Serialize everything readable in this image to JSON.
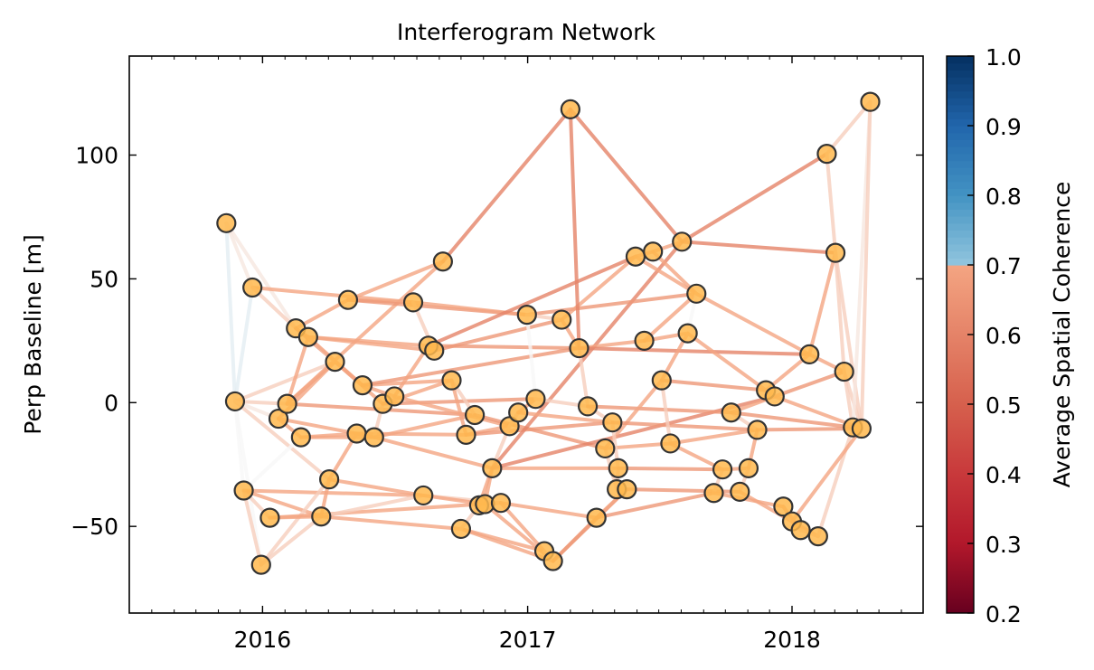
{
  "chart_data": {
    "type": "scatter",
    "title": "Interferogram Network",
    "xlabel": "",
    "ylabel": "Perp Baseline [m]",
    "xlim": [
      "2015-07-01",
      "2018-07-01"
    ],
    "ylim": [
      -85,
      140
    ],
    "x_ticks": [
      "2016-01-01",
      "2017-01-01",
      "2018-01-01"
    ],
    "x_tick_labels": [
      "2016",
      "2017",
      "2018"
    ],
    "y_ticks": [
      -50,
      0,
      50,
      100
    ],
    "y_tick_labels": [
      "−50",
      "0",
      "50",
      "100"
    ],
    "grid": false,
    "colorbar": {
      "label": "Average Spatial Coherence",
      "range": [
        0.2,
        1.0
      ],
      "ticks": [
        0.2,
        0.3,
        0.4,
        0.5,
        0.6,
        0.7,
        0.8,
        0.9,
        1.0
      ],
      "tick_labels": [
        "0.2",
        "0.3",
        "0.4",
        "0.5",
        "0.6",
        "0.7",
        "0.8",
        "0.9",
        "1.0"
      ],
      "colormap": "RdBu",
      "masked_above": 0.7
    },
    "node_color": "#ffb84d",
    "points": [
      {
        "date": "2015-11-12",
        "bperp": 72.5
      },
      {
        "date": "2015-11-24",
        "bperp": 0.5
      },
      {
        "date": "2015-12-06",
        "bperp": -35.5
      },
      {
        "date": "2015-12-18",
        "bperp": 46.5
      },
      {
        "date": "2015-12-30",
        "bperp": -65.5
      },
      {
        "date": "2016-01-11",
        "bperp": -46.5
      },
      {
        "date": "2016-01-23",
        "bperp": -6.5
      },
      {
        "date": "2016-02-04",
        "bperp": -0.5
      },
      {
        "date": "2016-02-16",
        "bperp": 30
      },
      {
        "date": "2016-02-23",
        "bperp": -14
      },
      {
        "date": "2016-03-04",
        "bperp": 26.5
      },
      {
        "date": "2016-03-22",
        "bperp": -46
      },
      {
        "date": "2016-04-02",
        "bperp": -31
      },
      {
        "date": "2016-04-10",
        "bperp": 16.5
      },
      {
        "date": "2016-04-28",
        "bperp": 41.5
      },
      {
        "date": "2016-05-10",
        "bperp": -12.5
      },
      {
        "date": "2016-05-18",
        "bperp": 7
      },
      {
        "date": "2016-06-03",
        "bperp": -14
      },
      {
        "date": "2016-06-15",
        "bperp": -0.5
      },
      {
        "date": "2016-07-01",
        "bperp": 2.5
      },
      {
        "date": "2016-07-27",
        "bperp": 40.5
      },
      {
        "date": "2016-08-10",
        "bperp": -37.5
      },
      {
        "date": "2016-08-17",
        "bperp": 23
      },
      {
        "date": "2016-08-25",
        "bperp": 21
      },
      {
        "date": "2016-09-06",
        "bperp": 57
      },
      {
        "date": "2016-09-18",
        "bperp": 9
      },
      {
        "date": "2016-10-01",
        "bperp": -51
      },
      {
        "date": "2016-10-08",
        "bperp": -13
      },
      {
        "date": "2016-10-20",
        "bperp": -5
      },
      {
        "date": "2016-10-26",
        "bperp": -41.5
      },
      {
        "date": "2016-11-03",
        "bperp": -41
      },
      {
        "date": "2016-11-13",
        "bperp": -26.5
      },
      {
        "date": "2016-11-25",
        "bperp": -40.5
      },
      {
        "date": "2016-12-07",
        "bperp": -9.5
      },
      {
        "date": "2016-12-19",
        "bperp": -4
      },
      {
        "date": "2016-12-31",
        "bperp": 35.5
      },
      {
        "date": "2017-01-12",
        "bperp": 1.5
      },
      {
        "date": "2017-01-24",
        "bperp": -60
      },
      {
        "date": "2017-02-05",
        "bperp": -64
      },
      {
        "date": "2017-02-17",
        "bperp": 33.5
      },
      {
        "date": "2017-03-01",
        "bperp": 118.5
      },
      {
        "date": "2017-03-13",
        "bperp": 22
      },
      {
        "date": "2017-03-25",
        "bperp": -1.5
      },
      {
        "date": "2017-04-06",
        "bperp": -46.5
      },
      {
        "date": "2017-04-18",
        "bperp": -18.5
      },
      {
        "date": "2017-04-28",
        "bperp": -8
      },
      {
        "date": "2017-05-04",
        "bperp": -35
      },
      {
        "date": "2017-05-06",
        "bperp": -26.5
      },
      {
        "date": "2017-05-18",
        "bperp": -35
      },
      {
        "date": "2017-05-30",
        "bperp": 59
      },
      {
        "date": "2017-06-11",
        "bperp": 25
      },
      {
        "date": "2017-06-23",
        "bperp": 61
      },
      {
        "date": "2017-07-05",
        "bperp": 9
      },
      {
        "date": "2017-07-17",
        "bperp": -16.5
      },
      {
        "date": "2017-08-02",
        "bperp": 65
      },
      {
        "date": "2017-08-10",
        "bperp": 28
      },
      {
        "date": "2017-08-22",
        "bperp": 44
      },
      {
        "date": "2017-09-15",
        "bperp": -36.5
      },
      {
        "date": "2017-09-27",
        "bperp": -27
      },
      {
        "date": "2017-10-09",
        "bperp": -4
      },
      {
        "date": "2017-10-21",
        "bperp": -36
      },
      {
        "date": "2017-11-02",
        "bperp": -26.5
      },
      {
        "date": "2017-11-14",
        "bperp": -11
      },
      {
        "date": "2017-11-26",
        "bperp": 5
      },
      {
        "date": "2017-12-08",
        "bperp": 2.5
      },
      {
        "date": "2017-12-20",
        "bperp": -42
      },
      {
        "date": "2018-01-01",
        "bperp": -48
      },
      {
        "date": "2018-01-13",
        "bperp": -51.5
      },
      {
        "date": "2018-01-25",
        "bperp": 19.5
      },
      {
        "date": "2018-02-06",
        "bperp": -54
      },
      {
        "date": "2018-02-18",
        "bperp": 100.5
      },
      {
        "date": "2018-03-02",
        "bperp": 60.5
      },
      {
        "date": "2018-03-14",
        "bperp": 12.5
      },
      {
        "date": "2018-03-26",
        "bperp": -10
      },
      {
        "date": "2018-04-07",
        "bperp": -10.5
      },
      {
        "date": "2018-04-19",
        "bperp": 121.5
      }
    ],
    "pairs": [
      [
        0,
        1,
        0.62
      ],
      [
        0,
        3,
        0.58
      ],
      [
        0,
        8,
        0.58
      ],
      [
        1,
        3,
        0.62
      ],
      [
        1,
        2,
        0.6
      ],
      [
        1,
        7,
        0.55
      ],
      [
        1,
        4,
        0.6
      ],
      [
        1,
        13,
        0.55
      ],
      [
        1,
        12,
        0.55
      ],
      [
        1,
        6,
        0.58
      ],
      [
        2,
        5,
        0.55
      ],
      [
        2,
        11,
        0.5
      ],
      [
        2,
        4,
        0.55
      ],
      [
        2,
        9,
        0.6
      ],
      [
        2,
        21,
        0.5
      ],
      [
        3,
        20,
        0.5
      ],
      [
        3,
        8,
        0.55
      ],
      [
        4,
        11,
        0.55
      ],
      [
        4,
        12,
        0.55
      ],
      [
        5,
        11,
        0.5
      ],
      [
        5,
        32,
        0.5
      ],
      [
        6,
        9,
        0.5
      ],
      [
        6,
        13,
        0.5
      ],
      [
        6,
        15,
        0.5
      ],
      [
        7,
        13,
        0.5
      ],
      [
        7,
        10,
        0.5
      ],
      [
        7,
        28,
        0.48
      ],
      [
        7,
        24,
        0.5
      ],
      [
        8,
        10,
        0.5
      ],
      [
        8,
        14,
        0.5
      ],
      [
        8,
        16,
        0.48
      ],
      [
        9,
        15,
        0.5
      ],
      [
        9,
        17,
        0.5
      ],
      [
        10,
        22,
        0.5
      ],
      [
        10,
        13,
        0.55
      ],
      [
        10,
        16,
        0.5
      ],
      [
        10,
        23,
        0.5
      ],
      [
        11,
        21,
        0.55
      ],
      [
        11,
        12,
        0.5
      ],
      [
        11,
        26,
        0.5
      ],
      [
        12,
        21,
        0.5
      ],
      [
        12,
        15,
        0.5
      ],
      [
        13,
        18,
        0.5
      ],
      [
        14,
        20,
        0.5
      ],
      [
        14,
        24,
        0.5
      ],
      [
        14,
        35,
        0.48
      ],
      [
        15,
        17,
        0.5
      ],
      [
        15,
        27,
        0.5
      ],
      [
        16,
        19,
        0.5
      ],
      [
        16,
        25,
        0.5
      ],
      [
        16,
        41,
        0.48
      ],
      [
        17,
        18,
        0.55
      ],
      [
        17,
        28,
        0.5
      ],
      [
        17,
        31,
        0.5
      ],
      [
        18,
        19,
        0.55
      ],
      [
        18,
        25,
        0.5
      ],
      [
        18,
        36,
        0.48
      ],
      [
        19,
        22,
        0.5
      ],
      [
        19,
        33,
        0.5
      ],
      [
        20,
        35,
        0.5
      ],
      [
        20,
        23,
        0.55
      ],
      [
        21,
        32,
        0.55
      ],
      [
        21,
        30,
        0.5
      ],
      [
        22,
        49,
        0.45
      ],
      [
        22,
        41,
        0.48
      ],
      [
        23,
        39,
        0.48
      ],
      [
        24,
        40,
        0.45
      ],
      [
        25,
        28,
        0.55
      ],
      [
        25,
        27,
        0.5
      ],
      [
        26,
        37,
        0.5
      ],
      [
        26,
        38,
        0.5
      ],
      [
        26,
        29,
        0.55
      ],
      [
        27,
        33,
        0.5
      ],
      [
        27,
        45,
        0.48
      ],
      [
        28,
        44,
        0.48
      ],
      [
        29,
        31,
        0.5
      ],
      [
        30,
        31,
        0.5
      ],
      [
        30,
        38,
        0.5
      ],
      [
        31,
        33,
        0.55
      ],
      [
        31,
        47,
        0.5
      ],
      [
        31,
        54,
        0.45
      ],
      [
        31,
        64,
        0.45
      ],
      [
        32,
        37,
        0.5
      ],
      [
        32,
        43,
        0.5
      ],
      [
        33,
        34,
        0.55
      ],
      [
        34,
        36,
        0.5
      ],
      [
        34,
        45,
        0.5
      ],
      [
        35,
        36,
        0.6
      ],
      [
        35,
        56,
        0.48
      ],
      [
        35,
        39,
        0.55
      ],
      [
        36,
        42,
        0.55
      ],
      [
        37,
        38,
        0.55
      ],
      [
        38,
        43,
        0.5
      ],
      [
        38,
        48,
        0.48
      ],
      [
        39,
        49,
        0.5
      ],
      [
        39,
        41,
        0.5
      ],
      [
        40,
        41,
        0.45
      ],
      [
        40,
        54,
        0.45
      ],
      [
        41,
        42,
        0.55
      ],
      [
        41,
        50,
        0.5
      ],
      [
        41,
        68,
        0.45
      ],
      [
        42,
        45,
        0.55
      ],
      [
        42,
        59,
        0.48
      ],
      [
        43,
        48,
        0.5
      ],
      [
        43,
        57,
        0.48
      ],
      [
        44,
        46,
        0.55
      ],
      [
        44,
        53,
        0.5
      ],
      [
        44,
        52,
        0.5
      ],
      [
        45,
        47,
        0.55
      ],
      [
        45,
        62,
        0.48
      ],
      [
        46,
        47,
        0.55
      ],
      [
        46,
        48,
        0.55
      ],
      [
        47,
        58,
        0.48
      ],
      [
        48,
        60,
        0.48
      ],
      [
        49,
        51,
        0.5
      ],
      [
        49,
        56,
        0.5
      ],
      [
        50,
        55,
        0.5
      ],
      [
        50,
        56,
        0.5
      ],
      [
        51,
        54,
        0.5
      ],
      [
        51,
        56,
        0.5
      ],
      [
        52,
        53,
        0.55
      ],
      [
        52,
        63,
        0.48
      ],
      [
        52,
        55,
        0.5
      ],
      [
        53,
        58,
        0.5
      ],
      [
        53,
        62,
        0.5
      ],
      [
        54,
        71,
        0.45
      ],
      [
        54,
        70,
        0.45
      ],
      [
        55,
        56,
        0.6
      ],
      [
        55,
        63,
        0.5
      ],
      [
        56,
        68,
        0.5
      ],
      [
        57,
        58,
        0.55
      ],
      [
        57,
        65,
        0.5
      ],
      [
        58,
        61,
        0.5
      ],
      [
        59,
        62,
        0.55
      ],
      [
        59,
        64,
        0.5
      ],
      [
        59,
        73,
        0.48
      ],
      [
        60,
        61,
        0.55
      ],
      [
        60,
        66,
        0.5
      ],
      [
        61,
        62,
        0.5
      ],
      [
        62,
        74,
        0.48
      ],
      [
        63,
        64,
        0.55
      ],
      [
        63,
        68,
        0.5
      ],
      [
        64,
        72,
        0.48
      ],
      [
        65,
        66,
        0.55
      ],
      [
        65,
        67,
        0.5
      ],
      [
        66,
        67,
        0.55
      ],
      [
        66,
        69,
        0.5
      ],
      [
        67,
        69,
        0.55
      ],
      [
        68,
        71,
        0.5
      ],
      [
        68,
        72,
        0.5
      ],
      [
        69,
        73,
        0.55
      ],
      [
        70,
        71,
        0.55
      ],
      [
        70,
        75,
        0.55
      ],
      [
        71,
        72,
        0.55
      ],
      [
        71,
        74,
        0.55
      ],
      [
        72,
        73,
        0.55
      ],
      [
        72,
        74,
        0.55
      ],
      [
        73,
        75,
        0.58
      ],
      [
        74,
        75,
        0.55
      ],
      [
        64,
        74,
        0.5
      ],
      [
        66,
        74,
        0.5
      ]
    ]
  }
}
